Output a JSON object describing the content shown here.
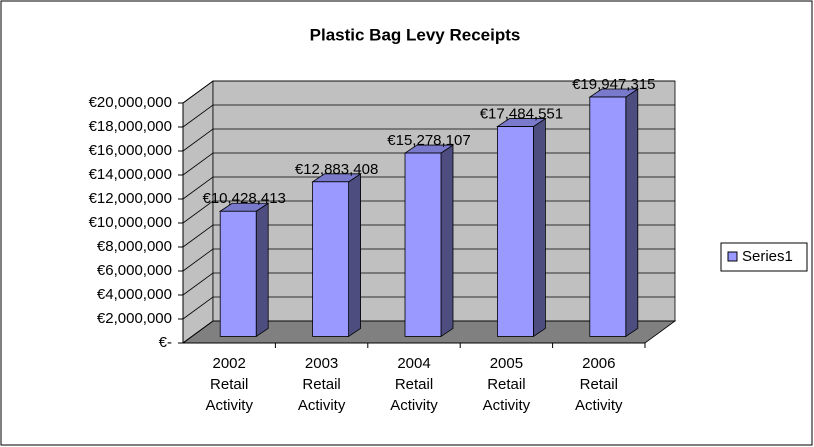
{
  "chart_data": {
    "type": "bar3d",
    "title": "Plastic Bag Levy Receipts",
    "categories": [
      [
        "2002",
        "Retail",
        "Activity"
      ],
      [
        "2003",
        "Retail",
        "Activity"
      ],
      [
        "2004",
        "Retail",
        "Activity"
      ],
      [
        "2005",
        "Retail",
        "Activity"
      ],
      [
        "2006",
        "Retail",
        "Activity"
      ]
    ],
    "series": [
      {
        "name": "Series1",
        "color": "#9999ff",
        "values": [
          10428413,
          12883408,
          15278107,
          17484551,
          19947315
        ],
        "value_labels": [
          "€10,428,413",
          "€12,883,408",
          "€15,278,107",
          "€17,484,551",
          "€19,947,315"
        ]
      }
    ],
    "ylim": [
      0,
      20000000
    ],
    "yticks": [
      {
        "value": 0,
        "label": "€-"
      },
      {
        "value": 2000000,
        "label": "€2,000,000"
      },
      {
        "value": 4000000,
        "label": "€4,000,000"
      },
      {
        "value": 6000000,
        "label": "€6,000,000"
      },
      {
        "value": 8000000,
        "label": "€8,000,000"
      },
      {
        "value": 10000000,
        "label": "€10,000,000"
      },
      {
        "value": 12000000,
        "label": "€12,000,000"
      },
      {
        "value": 14000000,
        "label": "€14,000,000"
      },
      {
        "value": 16000000,
        "label": "€16,000,000"
      },
      {
        "value": 18000000,
        "label": "€18,000,000"
      },
      {
        "value": 20000000,
        "label": "€20,000,000"
      }
    ],
    "grid": true,
    "legend": "right"
  }
}
